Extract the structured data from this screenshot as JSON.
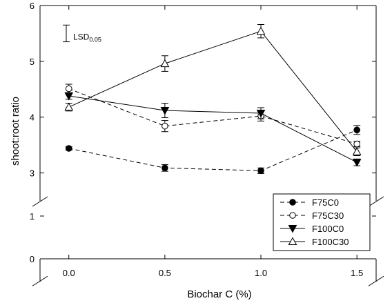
{
  "chart_data": {
    "type": "line",
    "xlabel": "Biochar C (%)",
    "ylabel": "shoot:root ratio",
    "x": [
      0.0,
      0.5,
      1.0,
      1.5
    ],
    "x_tick_labels": [
      "0.0",
      "0.5",
      "1.0",
      "1.5"
    ],
    "y_tick_labels": [
      "0",
      "1",
      "3",
      "4",
      "5",
      "6"
    ],
    "xlim": [
      -0.15,
      1.6
    ],
    "ylim_lower_segment": [
      0,
      1
    ],
    "ylim_upper_segment": [
      2.5,
      6
    ],
    "axis_break": true,
    "grid": false,
    "legend_position": "bottom-right",
    "lsd": {
      "label": "LSD",
      "subscript": "0.05",
      "low": 5.35,
      "high": 5.65
    },
    "series": [
      {
        "name": "F75C0",
        "marker": "filled-circle",
        "linestyle": "dashed",
        "values": [
          3.44,
          3.09,
          3.04,
          3.77
        ],
        "errors": [
          0.03,
          0.06,
          0.05,
          0.08
        ]
      },
      {
        "name": "F75C30",
        "marker": "open-circle",
        "linestyle": "dashed",
        "values": [
          4.51,
          3.84,
          4.02,
          3.52
        ],
        "errors": [
          0.08,
          0.1,
          0.09,
          0.05
        ]
      },
      {
        "name": "F100C0",
        "marker": "filled-triangle-down",
        "linestyle": "solid",
        "values": [
          4.38,
          4.12,
          4.07,
          3.19
        ],
        "errors": [
          0.06,
          0.13,
          0.1,
          0.06
        ]
      },
      {
        "name": "F100C30",
        "marker": "open-triangle-up",
        "linestyle": "solid",
        "values": [
          4.18,
          4.96,
          5.54,
          3.38
        ],
        "errors": [
          0.07,
          0.14,
          0.12,
          0.07
        ]
      }
    ]
  }
}
